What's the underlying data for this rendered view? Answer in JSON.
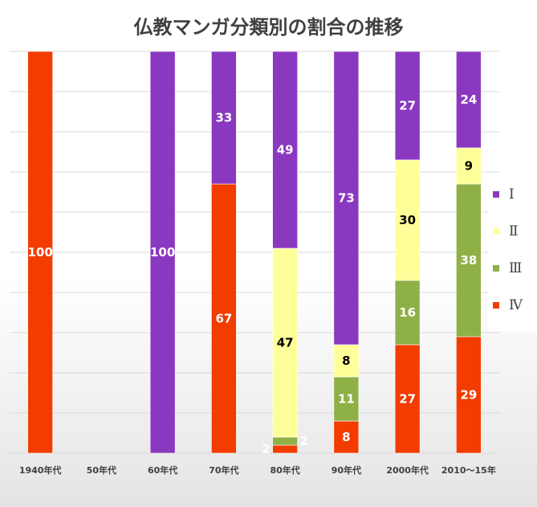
{
  "chart_data": {
    "type": "bar",
    "stacked": true,
    "title": "仏教マンガ分類別の割合の推移",
    "categories": [
      "1940年代",
      "50年代",
      "60年代",
      "70年代",
      "80年代",
      "90年代",
      "2000年代",
      "2010〜15年"
    ],
    "series": [
      {
        "name": "Ⅳ",
        "color": "#f23c00",
        "values": [
          100,
          null,
          null,
          67,
          2,
          8,
          27,
          29
        ]
      },
      {
        "name": "Ⅲ",
        "color": "#8fb046",
        "values": [
          null,
          null,
          null,
          null,
          2,
          11,
          16,
          38
        ]
      },
      {
        "name": "Ⅱ",
        "color": "#ffff99",
        "values": [
          null,
          null,
          null,
          null,
          47,
          8,
          30,
          9
        ]
      },
      {
        "name": "Ⅰ",
        "color": "#8a38c0",
        "values": [
          null,
          null,
          100,
          33,
          49,
          73,
          27,
          24
        ]
      }
    ],
    "ylim": [
      0,
      100
    ],
    "grid": true,
    "legend": "right"
  }
}
